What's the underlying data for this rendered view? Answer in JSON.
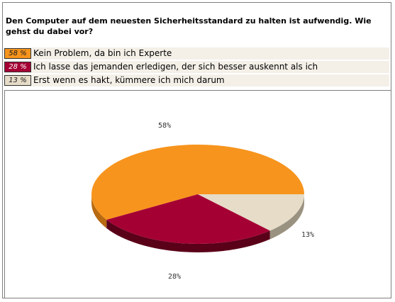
{
  "question": "Den Computer auf dem neuesten Sicherheitsstandard zu halten ist aufwendig. Wie gehst du dabei vor?",
  "legend": [
    {
      "pct": "58 %",
      "label": "Kein Problem, da bin ich Experte"
    },
    {
      "pct": "28 %",
      "label": "Ich lasse das jemanden erledigen, der sich besser auskennt als ich"
    },
    {
      "pct": "13 %",
      "label": "Erst wenn es hakt, kümmere ich mich darum"
    }
  ],
  "chart_data": {
    "type": "pie",
    "categories": [
      "Kein Problem, da bin ich Experte",
      "Ich lasse das jemanden erledigen, der sich besser auskennt als ich",
      "Erst wenn es hakt, kümmere ich mich darum"
    ],
    "values": [
      58,
      28,
      13
    ],
    "labels": [
      "58%",
      "28%",
      "13%"
    ],
    "colors": [
      "#f7941d",
      "#a50034",
      "#e6dcc8"
    ],
    "side_colors": [
      "#b86a10",
      "#5a0018",
      "#9a9280"
    ],
    "legend_bg_colors": [
      "#f7941d",
      "#a50034",
      "#e6dcc8"
    ]
  }
}
